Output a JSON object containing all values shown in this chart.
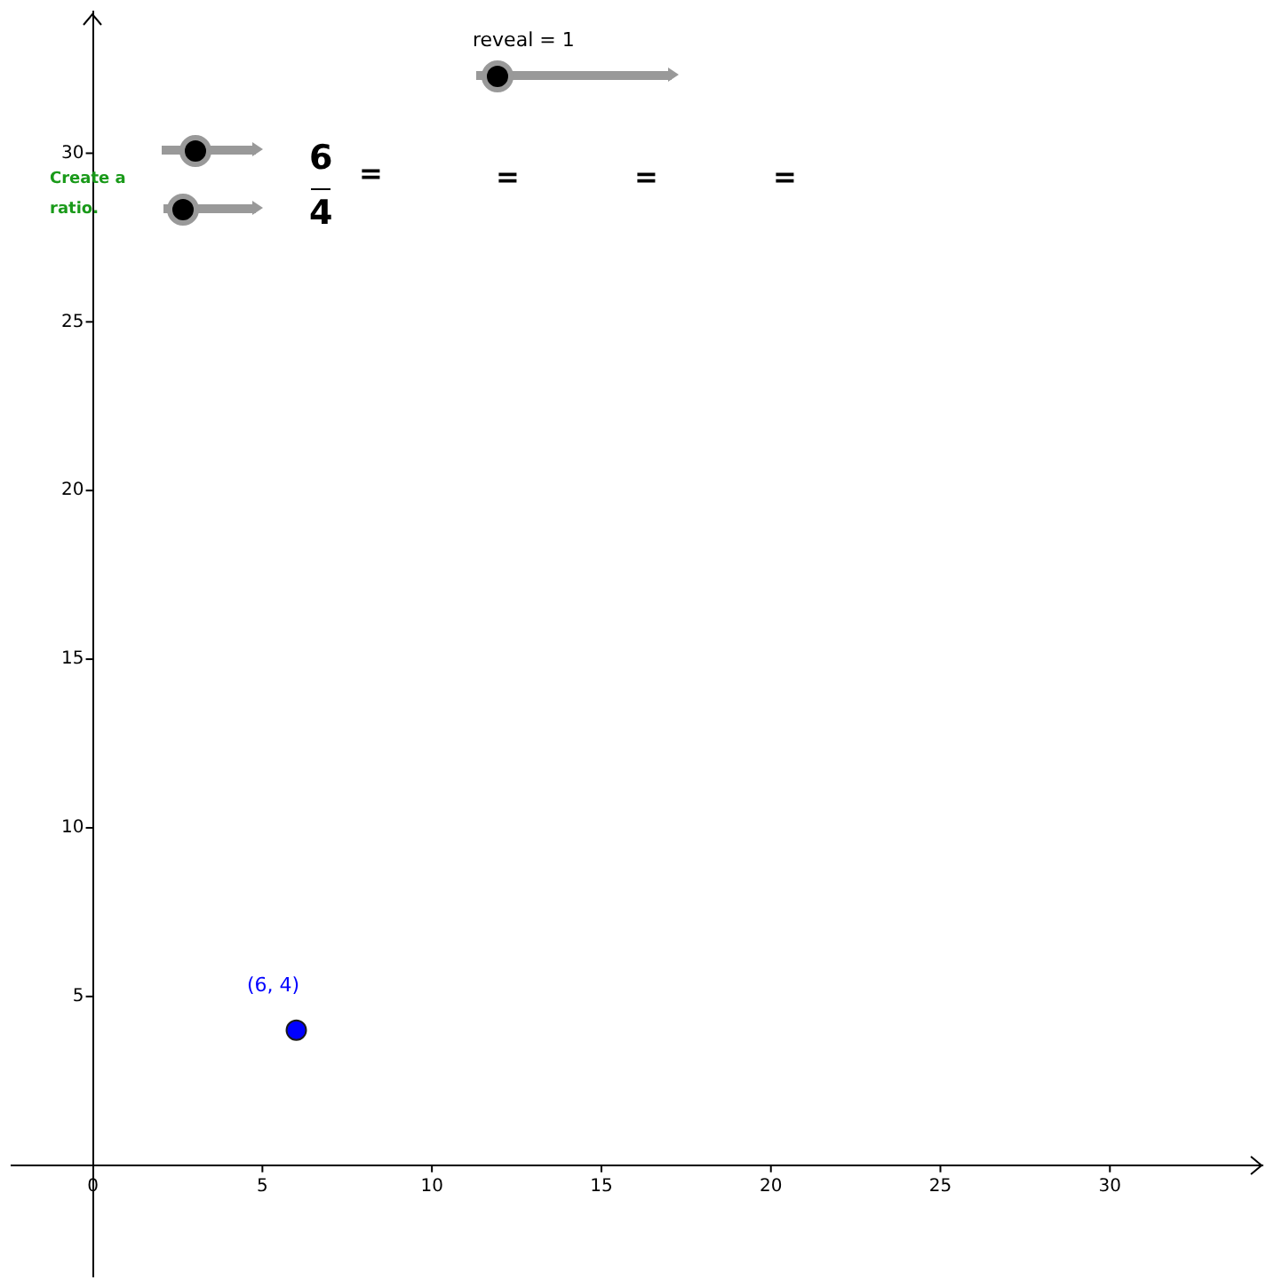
{
  "chart_data": {
    "type": "scatter",
    "x": [
      6
    ],
    "values": [
      4
    ],
    "color": "#0000ff",
    "marker": "circle",
    "xlim": [
      -2.4,
      34.5
    ],
    "ylim": [
      -3.3,
      34.2
    ],
    "xticks": [
      0,
      5,
      10,
      15,
      20,
      25,
      30
    ],
    "yticks": [
      5,
      10,
      15,
      20,
      25,
      30
    ],
    "grid": false,
    "legend": false,
    "annotations": [
      {
        "text": "(6, 4)",
        "x": 6,
        "y": 4
      },
      "reveal = 1",
      "Create a ratio.",
      "6",
      "4",
      "=",
      "=",
      "=",
      "="
    ]
  }
}
